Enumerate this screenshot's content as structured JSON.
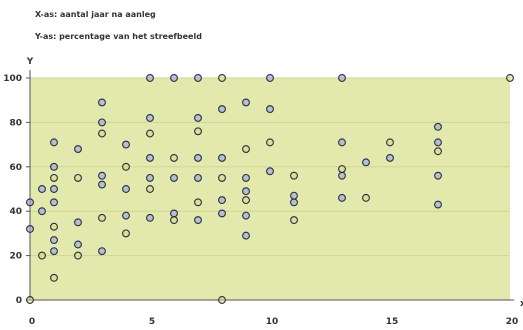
{
  "chart_data": {
    "type": "scatter",
    "legend_x": "X-as: aantal jaar na aanleg",
    "legend_y": "Y-as: percentage van het streefbeeld",
    "ylabel": "Y",
    "xlabel": "x",
    "xlim": [
      0,
      20
    ],
    "ylim": [
      0,
      100
    ],
    "x_ticks": [
      0,
      5,
      10,
      15,
      20
    ],
    "y_ticks": [
      0,
      20,
      40,
      60,
      80,
      100
    ],
    "grid": true,
    "colors": {
      "plot_background": "#e3e8ad",
      "gridline": "#d0d592",
      "marker_stroke": "#2b2b4a",
      "marker_fill_blue": "#8ea4d8",
      "marker_fill_yellow": "#d7db7a"
    },
    "series": [
      {
        "marker": "open-circle",
        "points": [
          [
            0,
            0
          ],
          [
            0,
            32
          ],
          [
            0,
            44
          ],
          [
            0.5,
            20
          ],
          [
            0.5,
            40
          ],
          [
            0.5,
            50
          ],
          [
            1,
            10
          ],
          [
            1,
            22
          ],
          [
            1,
            27
          ],
          [
            1,
            33
          ],
          [
            1,
            44
          ],
          [
            1,
            50
          ],
          [
            1,
            55
          ],
          [
            1,
            60
          ],
          [
            1,
            71
          ],
          [
            2,
            20
          ],
          [
            2,
            25
          ],
          [
            2,
            35
          ],
          [
            2,
            55
          ],
          [
            2,
            68
          ],
          [
            3,
            22
          ],
          [
            3,
            37
          ],
          [
            3,
            52
          ],
          [
            3,
            56
          ],
          [
            3,
            75
          ],
          [
            3,
            80
          ],
          [
            3,
            89
          ],
          [
            4,
            30
          ],
          [
            4,
            38
          ],
          [
            4,
            50
          ],
          [
            4,
            60
          ],
          [
            4,
            70
          ],
          [
            5,
            37
          ],
          [
            5,
            50
          ],
          [
            5,
            55
          ],
          [
            5,
            64
          ],
          [
            5,
            75
          ],
          [
            5,
            82
          ],
          [
            5,
            100
          ],
          [
            6,
            36
          ],
          [
            6,
            39
          ],
          [
            6,
            55
          ],
          [
            6,
            64
          ],
          [
            6,
            100
          ],
          [
            7,
            36
          ],
          [
            7,
            44
          ],
          [
            7,
            55
          ],
          [
            7,
            64
          ],
          [
            7,
            76
          ],
          [
            7,
            82
          ],
          [
            7,
            100
          ],
          [
            8,
            0
          ],
          [
            8,
            39
          ],
          [
            8,
            45
          ],
          [
            8,
            55
          ],
          [
            8,
            64
          ],
          [
            8,
            86
          ],
          [
            8,
            100
          ],
          [
            9,
            29
          ],
          [
            9,
            38
          ],
          [
            9,
            45
          ],
          [
            9,
            49
          ],
          [
            9,
            55
          ],
          [
            9,
            68
          ],
          [
            9,
            89
          ],
          [
            10,
            58
          ],
          [
            10,
            71
          ],
          [
            10,
            86
          ],
          [
            10,
            100
          ],
          [
            11,
            36
          ],
          [
            11,
            44
          ],
          [
            11,
            47
          ],
          [
            11,
            56
          ],
          [
            13,
            46
          ],
          [
            13,
            56
          ],
          [
            13,
            59
          ],
          [
            13,
            71
          ],
          [
            13,
            100
          ],
          [
            14,
            46
          ],
          [
            14,
            62
          ],
          [
            15,
            64
          ],
          [
            15,
            71
          ],
          [
            17,
            43
          ],
          [
            17,
            56
          ],
          [
            17,
            67
          ],
          [
            17,
            71
          ],
          [
            17,
            78
          ],
          [
            20,
            100
          ]
        ]
      }
    ]
  }
}
